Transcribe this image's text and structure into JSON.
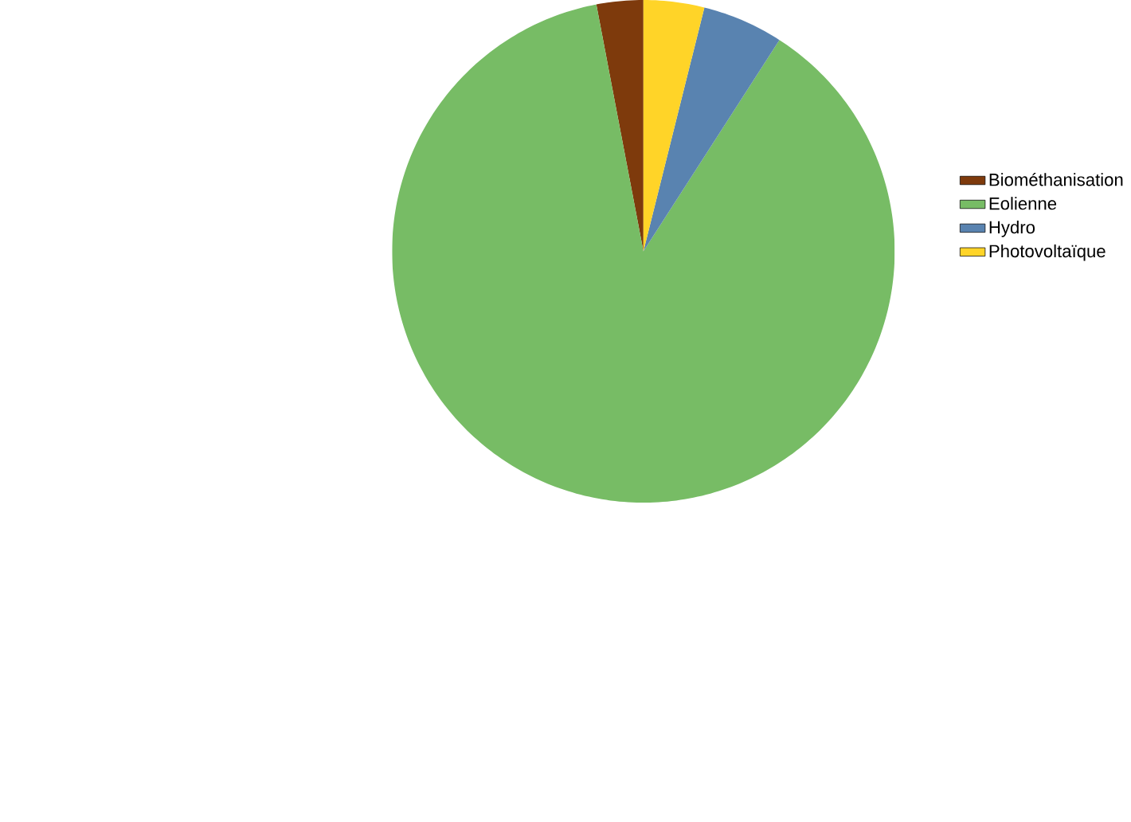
{
  "chart_data": {
    "type": "pie",
    "categories": [
      "Biométhanisation",
      "Eolienne",
      "Hydro",
      "Photovoltaïque"
    ],
    "values": [
      3.0,
      87.9,
      5.2,
      3.9
    ],
    "colors": [
      "#7e3a0c",
      "#77bc65",
      "#5983b0",
      "#ffd428"
    ],
    "legend": "right"
  }
}
